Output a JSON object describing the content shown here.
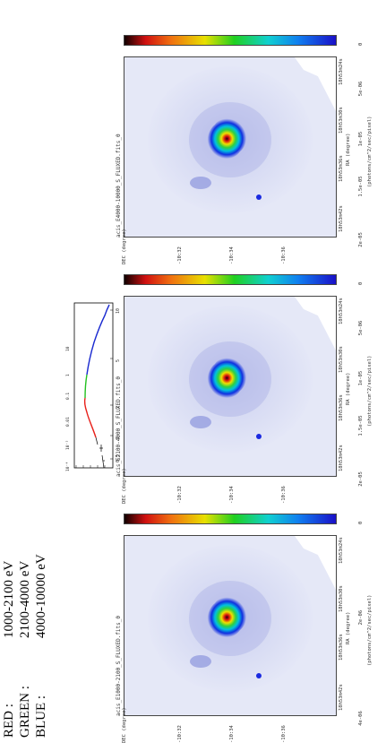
{
  "legend": {
    "red_label": "RED :",
    "red_range": "1000-2100 eV",
    "green_label": "GREEN :",
    "green_range": "2100-4000 eV",
    "blue_label": "BLUE :",
    "blue_range": "4000-10000 eV"
  },
  "spectrum": {
    "x_ticks": [
      "0.5",
      "1",
      "2",
      "5",
      "10"
    ],
    "y_ticks": [
      "10⁻⁴",
      "10⁻³",
      "0.01",
      "0.1",
      "1",
      "10"
    ],
    "segment_colors": {
      "black": "#000000",
      "red": "#e8201a",
      "green": "#22c020",
      "blue": "#1a2ad0"
    }
  },
  "panels": [
    {
      "title": "acis_E1000-2100_S_FLUXED.fits_0",
      "ylabel": "DEC (degree)",
      "yticks": [
        "-10:32",
        "-10:34",
        "-10:36"
      ],
      "xticks": [
        "18h53m42s",
        "18h53m36s",
        "18h53m30s",
        "18h53m24s"
      ],
      "xlabel": "RA (degree)",
      "cb_ticks": [
        "0",
        "2e-06",
        "4e-06"
      ],
      "cb_label": "(photons/cm^2/sec/pixel)"
    },
    {
      "title": "acis_E2100-4000_S_FLUXED.fits_0",
      "ylabel": "DEC (degree)",
      "yticks": [
        "-10:32",
        "-10:34",
        "-10:36"
      ],
      "xticks": [
        "18h53m42s",
        "18h53m36s",
        "18h53m30s",
        "18h53m24s"
      ],
      "xlabel": "RA (degree)",
      "cb_ticks": [
        "0",
        "5e-06",
        "1e-05",
        "1.5e-05",
        "2e-05"
      ],
      "cb_label": "(photons/cm^2/sec/pixel)"
    },
    {
      "title": "acis_E4000-10000_S_FLUXED.fits_0",
      "ylabel": "DEC (degree)",
      "yticks": [
        "-10:32",
        "-10:34",
        "-10:36"
      ],
      "xticks": [
        "18h53m42s",
        "18h53m36s",
        "18h53m30s",
        "18h53m24s"
      ],
      "xlabel": "RA (degree)",
      "cb_ticks": [
        "0",
        "5e-06",
        "1e-05",
        "1.5e-05",
        "2e-05"
      ],
      "cb_label": "(photons/cm^2/sec/pixel)"
    }
  ]
}
